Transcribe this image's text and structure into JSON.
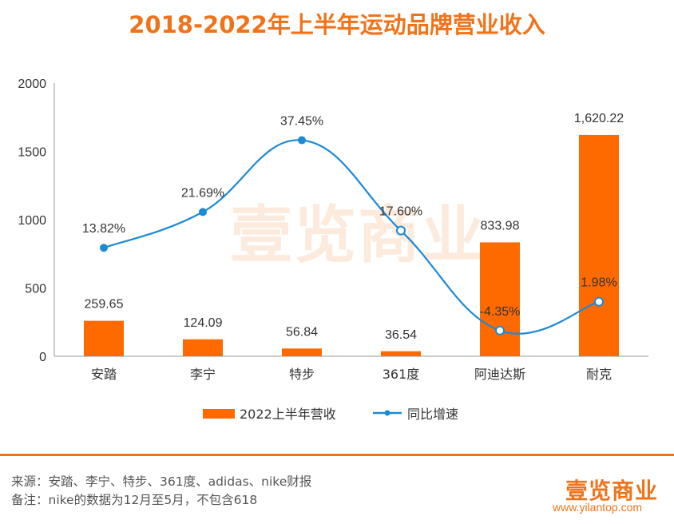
{
  "title": "2018-2022年上半年运动品牌营业收入",
  "chart_data": {
    "type": "bar+line",
    "categories": [
      "安踏",
      "李宁",
      "特步",
      "361度",
      "阿迪达斯",
      "耐克"
    ],
    "series": [
      {
        "name": "2022上半年营收",
        "type": "bar",
        "values": [
          259.65,
          124.09,
          56.84,
          36.54,
          833.98,
          1620.22
        ],
        "labels": [
          "259.65",
          "124.09",
          "56.84",
          "36.54",
          "833.98",
          "1,620.22"
        ],
        "color": "#ff6a00"
      },
      {
        "name": "同比增速",
        "type": "line",
        "values": [
          13.82,
          21.69,
          37.45,
          17.6,
          -4.35,
          1.98
        ],
        "labels": [
          "13.82%",
          "21.69%",
          "37.45%",
          "17.60%",
          "-4.35%",
          "1.98%"
        ],
        "color": "#1b8ad6"
      }
    ],
    "y_ticks": [
      "2000",
      "1500",
      "1000",
      "500",
      "0"
    ],
    "ylim": [
      0,
      2000
    ],
    "secondary_ylim": [
      -10,
      50
    ],
    "grid": false,
    "legend_position": "bottom"
  },
  "watermark": "壹览商业",
  "footer": {
    "source": "来源：安踏、李宁、特步、361度、adidas、nike财报",
    "note": "备注：nike的数据为12月至5月，不包含618",
    "logo": "壹览商业",
    "url": "www.yilantop.com"
  }
}
